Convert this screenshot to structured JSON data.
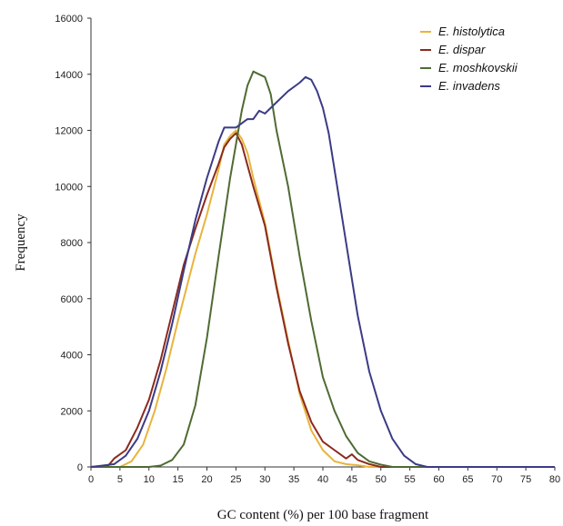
{
  "chart_data": {
    "type": "line",
    "title": "",
    "xlabel": "GC content (%) per 100 base fragment",
    "ylabel": "Frequency",
    "xlim": [
      0,
      80
    ],
    "ylim": [
      0,
      16000
    ],
    "xticks": [
      0,
      5,
      10,
      15,
      20,
      25,
      30,
      35,
      40,
      45,
      50,
      55,
      60,
      65,
      70,
      75,
      80
    ],
    "yticks": [
      0,
      2000,
      4000,
      6000,
      8000,
      10000,
      12000,
      14000,
      16000
    ],
    "grid": false,
    "legend_position": "top-right",
    "series": [
      {
        "name": "E. histolytica",
        "color": "#e8b43c",
        "points": [
          [
            0,
            0
          ],
          [
            5,
            0
          ],
          [
            7,
            200
          ],
          [
            9,
            800
          ],
          [
            11,
            2000
          ],
          [
            13,
            3500
          ],
          [
            15,
            5200
          ],
          [
            16,
            6000
          ],
          [
            18,
            7600
          ],
          [
            20,
            9000
          ],
          [
            22,
            10600
          ],
          [
            23,
            11500
          ],
          [
            24,
            11800
          ],
          [
            25,
            12000
          ],
          [
            26,
            11700
          ],
          [
            27,
            11200
          ],
          [
            28,
            10300
          ],
          [
            30,
            8700
          ],
          [
            32,
            6500
          ],
          [
            34,
            4500
          ],
          [
            36,
            2600
          ],
          [
            38,
            1300
          ],
          [
            40,
            600
          ],
          [
            42,
            200
          ],
          [
            44,
            100
          ],
          [
            46,
            60
          ],
          [
            48,
            0
          ],
          [
            80,
            0
          ]
        ]
      },
      {
        "name": "E. dispar",
        "color": "#8b2a1f",
        "points": [
          [
            0,
            0
          ],
          [
            3,
            50
          ],
          [
            4,
            300
          ],
          [
            6,
            600
          ],
          [
            8,
            1400
          ],
          [
            10,
            2400
          ],
          [
            12,
            3800
          ],
          [
            14,
            5500
          ],
          [
            16,
            7200
          ],
          [
            18,
            8500
          ],
          [
            20,
            9700
          ],
          [
            22,
            10800
          ],
          [
            23,
            11400
          ],
          [
            24,
            11700
          ],
          [
            25,
            11900
          ],
          [
            26,
            11500
          ],
          [
            28,
            10000
          ],
          [
            30,
            8600
          ],
          [
            32,
            6400
          ],
          [
            34,
            4400
          ],
          [
            36,
            2700
          ],
          [
            38,
            1600
          ],
          [
            40,
            900
          ],
          [
            42,
            600
          ],
          [
            44,
            300
          ],
          [
            45,
            450
          ],
          [
            46,
            250
          ],
          [
            48,
            100
          ],
          [
            50,
            0
          ],
          [
            80,
            0
          ]
        ]
      },
      {
        "name": "E. moshkovskii",
        "color": "#4f6b33",
        "points": [
          [
            0,
            0
          ],
          [
            10,
            0
          ],
          [
            12,
            50
          ],
          [
            14,
            250
          ],
          [
            16,
            800
          ],
          [
            18,
            2200
          ],
          [
            20,
            4600
          ],
          [
            22,
            7500
          ],
          [
            24,
            10300
          ],
          [
            26,
            12700
          ],
          [
            27,
            13600
          ],
          [
            28,
            14100
          ],
          [
            29,
            14000
          ],
          [
            30,
            13900
          ],
          [
            31,
            13300
          ],
          [
            32,
            12000
          ],
          [
            34,
            10000
          ],
          [
            36,
            7500
          ],
          [
            38,
            5200
          ],
          [
            40,
            3200
          ],
          [
            42,
            2000
          ],
          [
            44,
            1100
          ],
          [
            46,
            500
          ],
          [
            48,
            200
          ],
          [
            50,
            80
          ],
          [
            52,
            0
          ],
          [
            80,
            0
          ]
        ]
      },
      {
        "name": "E. invadens",
        "color": "#3b3b86",
        "points": [
          [
            0,
            0
          ],
          [
            2,
            50
          ],
          [
            4,
            100
          ],
          [
            6,
            400
          ],
          [
            8,
            1000
          ],
          [
            10,
            2000
          ],
          [
            12,
            3400
          ],
          [
            14,
            5100
          ],
          [
            16,
            7000
          ],
          [
            18,
            8800
          ],
          [
            20,
            10300
          ],
          [
            22,
            11600
          ],
          [
            23,
            12100
          ],
          [
            25,
            12100
          ],
          [
            27,
            12400
          ],
          [
            28,
            12400
          ],
          [
            29,
            12700
          ],
          [
            30,
            12600
          ],
          [
            32,
            13000
          ],
          [
            34,
            13400
          ],
          [
            36,
            13700
          ],
          [
            37,
            13900
          ],
          [
            38,
            13800
          ],
          [
            39,
            13400
          ],
          [
            40,
            12800
          ],
          [
            41,
            11900
          ],
          [
            42,
            10600
          ],
          [
            44,
            8000
          ],
          [
            46,
            5400
          ],
          [
            48,
            3400
          ],
          [
            50,
            2000
          ],
          [
            52,
            1000
          ],
          [
            54,
            400
          ],
          [
            56,
            100
          ],
          [
            58,
            0
          ],
          [
            80,
            0
          ]
        ]
      }
    ]
  }
}
